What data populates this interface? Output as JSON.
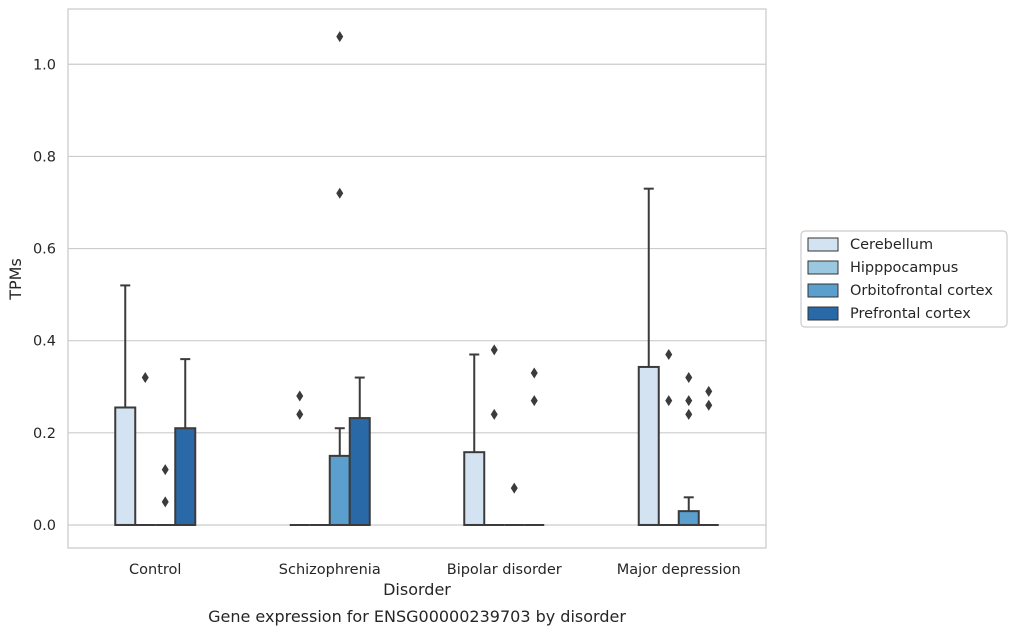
{
  "chart_data": {
    "type": "boxplot",
    "title": "Gene expression for ENSG00000239703 by disorder",
    "xlabel": "Disorder",
    "ylabel": "TPMs",
    "ylim": [
      -0.05,
      1.12
    ],
    "yticks": [
      0.0,
      0.2,
      0.4,
      0.6,
      0.8,
      1.0
    ],
    "ytick_labels": [
      "0.0",
      "0.2",
      "0.4",
      "0.6",
      "0.8",
      "1.0"
    ],
    "grid": true,
    "legend_position": "right",
    "categories": [
      "Control",
      "Schizophrenia",
      "Bipolar disorder",
      "Major depression"
    ],
    "series": [
      {
        "name": "Cerebellum",
        "color": "#d3e3f2",
        "boxes": [
          {
            "q1": 0,
            "median": 0,
            "q3": 0.255,
            "whisker_low": 0,
            "whisker_high": 0.52,
            "outliers": []
          },
          {
            "q1": 0,
            "median": 0,
            "q3": 0,
            "whisker_low": 0,
            "whisker_high": 0,
            "outliers": [
              0.24,
              0.28
            ]
          },
          {
            "q1": 0,
            "median": 0,
            "q3": 0.158,
            "whisker_low": 0,
            "whisker_high": 0.37,
            "outliers": []
          },
          {
            "q1": 0,
            "median": 0,
            "q3": 0.343,
            "whisker_low": 0,
            "whisker_high": 0.73,
            "outliers": []
          }
        ]
      },
      {
        "name": "Hipppocampus",
        "color": "#9ac8e0",
        "boxes": [
          {
            "q1": 0,
            "median": 0,
            "q3": 0,
            "whisker_low": 0,
            "whisker_high": 0,
            "outliers": [
              0.32
            ]
          },
          {
            "q1": 0,
            "median": 0,
            "q3": 0,
            "whisker_low": 0,
            "whisker_high": 0,
            "outliers": []
          },
          {
            "q1": 0,
            "median": 0,
            "q3": 0,
            "whisker_low": 0,
            "whisker_high": 0,
            "outliers": [
              0.24,
              0.38
            ]
          },
          {
            "q1": 0,
            "median": 0,
            "q3": 0,
            "whisker_low": 0,
            "whisker_high": 0,
            "outliers": [
              0.27,
              0.37
            ]
          }
        ]
      },
      {
        "name": "Orbitofrontal cortex",
        "color": "#5a9fcd",
        "boxes": [
          {
            "q1": 0,
            "median": 0,
            "q3": 0,
            "whisker_low": 0,
            "whisker_high": 0,
            "outliers": [
              0.05,
              0.12
            ]
          },
          {
            "q1": 0,
            "median": 0,
            "q3": 0.15,
            "whisker_low": 0,
            "whisker_high": 0.21,
            "outliers": [
              0.72,
              1.06
            ]
          },
          {
            "q1": 0,
            "median": 0,
            "q3": 0,
            "whisker_low": 0,
            "whisker_high": 0,
            "outliers": [
              0.08
            ]
          },
          {
            "q1": 0,
            "median": 0,
            "q3": 0.03,
            "whisker_low": 0,
            "whisker_high": 0.06,
            "outliers": [
              0.24,
              0.27,
              0.32
            ]
          }
        ]
      },
      {
        "name": "Prefrontal cortex",
        "color": "#2a69a8",
        "boxes": [
          {
            "q1": 0,
            "median": 0,
            "q3": 0.21,
            "whisker_low": 0,
            "whisker_high": 0.36,
            "outliers": []
          },
          {
            "q1": 0,
            "median": 0,
            "q3": 0.232,
            "whisker_low": 0,
            "whisker_high": 0.32,
            "outliers": []
          },
          {
            "q1": 0,
            "median": 0,
            "q3": 0,
            "whisker_low": 0,
            "whisker_high": 0,
            "outliers": [
              0.27,
              0.33
            ]
          },
          {
            "q1": 0,
            "median": 0,
            "q3": 0,
            "whisker_low": 0,
            "whisker_high": 0,
            "outliers": [
              0.26,
              0.29
            ]
          }
        ]
      }
    ]
  }
}
